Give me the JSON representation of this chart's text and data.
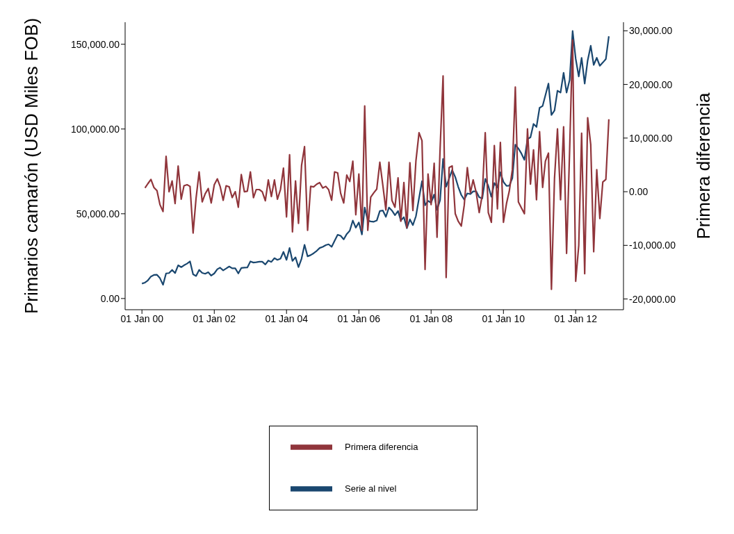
{
  "chart_data": {
    "type": "line",
    "ylabel": "Primarios camarón (USD Miles FOB)",
    "y2label": "Primera diferencia",
    "x": [
      "2000-01",
      "2000-02",
      "2000-03",
      "2000-04",
      "2000-05",
      "2000-06",
      "2000-07",
      "2000-08",
      "2000-09",
      "2000-10",
      "2000-11",
      "2000-12",
      "2001-01",
      "2001-02",
      "2001-03",
      "2001-04",
      "2001-05",
      "2001-06",
      "2001-07",
      "2001-08",
      "2001-09",
      "2001-10",
      "2001-11",
      "2001-12",
      "2002-01",
      "2002-02",
      "2002-03",
      "2002-04",
      "2002-05",
      "2002-06",
      "2002-07",
      "2002-08",
      "2002-09",
      "2002-10",
      "2002-11",
      "2002-12",
      "2003-01",
      "2003-02",
      "2003-03",
      "2003-04",
      "2003-05",
      "2003-06",
      "2003-07",
      "2003-08",
      "2003-09",
      "2003-10",
      "2003-11",
      "2003-12",
      "2004-01",
      "2004-02",
      "2004-03",
      "2004-04",
      "2004-05",
      "2004-06",
      "2004-07",
      "2004-08",
      "2004-09",
      "2004-10",
      "2004-11",
      "2004-12",
      "2005-01",
      "2005-02",
      "2005-03",
      "2005-04",
      "2005-05",
      "2005-06",
      "2005-07",
      "2005-08",
      "2005-09",
      "2005-10",
      "2005-11",
      "2005-12",
      "2006-01",
      "2006-02",
      "2006-03",
      "2006-04",
      "2006-05",
      "2006-06",
      "2006-07",
      "2006-08",
      "2006-09",
      "2006-10",
      "2006-11",
      "2006-12",
      "2007-01",
      "2007-02",
      "2007-03",
      "2007-04",
      "2007-05",
      "2007-06",
      "2007-07",
      "2007-08",
      "2007-09",
      "2007-10",
      "2007-11",
      "2007-12",
      "2008-01",
      "2008-02",
      "2008-03",
      "2008-04",
      "2008-05",
      "2008-06",
      "2008-07",
      "2008-08",
      "2008-09",
      "2008-10",
      "2008-11",
      "2008-12",
      "2009-01",
      "2009-02",
      "2009-03",
      "2009-04",
      "2009-05",
      "2009-06",
      "2009-07",
      "2009-08",
      "2009-09",
      "2009-10",
      "2009-11",
      "2009-12",
      "2010-01",
      "2010-02",
      "2010-03",
      "2010-04",
      "2010-05",
      "2010-06",
      "2010-07",
      "2010-08",
      "2010-09",
      "2010-10",
      "2010-11",
      "2010-12",
      "2011-01",
      "2011-02",
      "2011-03",
      "2011-04",
      "2011-05",
      "2011-06",
      "2011-07",
      "2011-08",
      "2011-09",
      "2011-10",
      "2011-11",
      "2011-12",
      "2012-01",
      "2012-02",
      "2012-03",
      "2012-04",
      "2012-05",
      "2012-06",
      "2012-07",
      "2012-08",
      "2012-09",
      "2012-10",
      "2012-11",
      "2012-12"
    ],
    "series": [
      {
        "name": "Serie al nivel",
        "color": "#1a476f",
        "values": [
          8800,
          9400,
          10700,
          13000,
          13900,
          14000,
          12000,
          8100,
          14800,
          15000,
          16900,
          15000,
          19600,
          18500,
          19600,
          20600,
          21900,
          14300,
          13300,
          16900,
          15100,
          14600,
          15500,
          13500,
          14800,
          17300,
          18200,
          16600,
          17700,
          18900,
          17800,
          17800,
          14800,
          18000,
          18200,
          18300,
          21900,
          21200,
          21400,
          21700,
          21700,
          20100,
          22400,
          21600,
          23800,
          22800,
          23500,
          27500,
          22800,
          29800,
          22200,
          24300,
          18500,
          23500,
          31700,
          24900,
          25600,
          26700,
          28100,
          29800,
          30500,
          31500,
          32000,
          30500,
          34100,
          37600,
          37000,
          34900,
          38100,
          40000,
          46000,
          41800,
          44900,
          37800,
          53700,
          46000,
          45500,
          45300,
          46000,
          51600,
          51900,
          48200,
          53700,
          51900,
          49200,
          51600,
          46000,
          48000,
          41500,
          46700,
          43300,
          48600,
          59200,
          69200,
          55000,
          57600,
          56500,
          61300,
          52300,
          58100,
          82400,
          66000,
          70800,
          75800,
          71700,
          65900,
          61100,
          58400,
          62000,
          61600,
          63200,
          63200,
          59800,
          59000,
          70600,
          66400,
          60000,
          68100,
          65500,
          74500,
          68800,
          66500,
          66600,
          71000,
          90800,
          88500,
          85600,
          81800,
          94100,
          95100,
          103000,
          101200,
          112500,
          113600,
          119900,
          126800,
          108300,
          110900,
          122600,
          121500,
          133200,
          121500,
          128900,
          157800,
          141500,
          131000,
          142000,
          126800,
          140400,
          149100,
          137800,
          142000,
          137300,
          139200,
          141300,
          154700
        ]
      },
      {
        "name": "Primera diferencia",
        "color": "#90353b",
        "axis": "y2",
        "values": [
          null,
          700,
          1500,
          2300,
          800,
          200,
          -2400,
          -3700,
          6600,
          0,
          2000,
          -2200,
          4800,
          -1400,
          1100,
          1300,
          1000,
          -7700,
          -1200,
          3700,
          -1900,
          -400,
          600,
          -2100,
          1300,
          2400,
          1000,
          -1600,
          1100,
          900,
          -1100,
          0,
          -2900,
          3200,
          0,
          100,
          3700,
          -1100,
          400,
          400,
          0,
          -1700,
          2200,
          -900,
          2200,
          -1400,
          400,
          4400,
          -4700,
          6900,
          -7500,
          2000,
          -5900,
          4900,
          8400,
          -7200,
          1000,
          900,
          1400,
          1700,
          700,
          1000,
          400,
          -1600,
          3700,
          3500,
          -300,
          -2100,
          3100,
          1900,
          5700,
          -4300,
          3300,
          -7200,
          16000,
          -7200,
          -1000,
          -200,
          500,
          5500,
          1100,
          -3400,
          5500,
          -1600,
          -2900,
          2600,
          -5500,
          1700,
          -6700,
          5400,
          -3500,
          5800,
          11000,
          9500,
          -14500,
          3300,
          -2400,
          5300,
          -8500,
          8000,
          21600,
          -16000,
          4500,
          4800,
          -4100,
          -5500,
          -6400,
          -2500,
          4500,
          -200,
          2200,
          -200,
          -3900,
          -600,
          11000,
          -3900,
          -5700,
          8600,
          -3200,
          9200,
          -5700,
          -2200,
          100,
          4100,
          19500,
          -1900,
          -3000,
          -4100,
          11700,
          1400,
          7800,
          -1500,
          11200,
          800,
          5700,
          7200,
          -18200,
          2500,
          11700,
          -1500,
          12100,
          -11500,
          7800,
          28300,
          -16700,
          -10000,
          10900,
          -15300,
          13800,
          8800,
          -11200,
          4100,
          -5000,
          1800,
          2300,
          13500
        ]
      }
    ],
    "xlim": [
      "1999-07-15",
      "2013-04-28"
    ],
    "xticks": [
      {
        "value": "2000-01-01",
        "label": "01 Jan 00"
      },
      {
        "value": "2002-01-01",
        "label": "01 Jan 02"
      },
      {
        "value": "2004-01-01",
        "label": "01 Jan 04"
      },
      {
        "value": "2006-01-01",
        "label": "01 Jan 06"
      },
      {
        "value": "2008-01-01",
        "label": "01 Jan 08"
      },
      {
        "value": "2010-01-01",
        "label": "01 Jan 10"
      },
      {
        "value": "2012-01-01",
        "label": "01 Jan 12"
      }
    ],
    "ylim": [
      -6600,
      163000
    ],
    "yticks": [
      {
        "value": 0,
        "label": "0.00"
      },
      {
        "value": 50000,
        "label": "50,000.00"
      },
      {
        "value": 100000,
        "label": "100,000.00"
      },
      {
        "value": 150000,
        "label": "150,000.00"
      }
    ],
    "y2lim": [
      -22000,
      31600
    ],
    "y2ticks": [
      {
        "value": -20000,
        "label": "-20,000.00"
      },
      {
        "value": -10000,
        "label": "-10,000.00"
      },
      {
        "value": 0,
        "label": "0.00"
      },
      {
        "value": 10000,
        "label": "10,000.00"
      },
      {
        "value": 20000,
        "label": "20,000.00"
      },
      {
        "value": 30000,
        "label": "30,000.00"
      }
    ],
    "grid": false,
    "legend": "bottom",
    "marker": "none",
    "line_style": "solid"
  }
}
